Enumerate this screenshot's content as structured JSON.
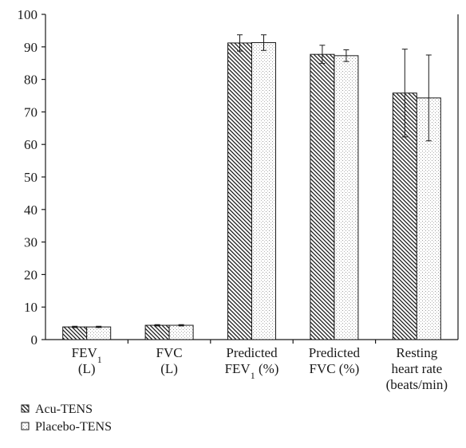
{
  "chart_data": {
    "type": "bar",
    "title": "",
    "xlabel": "",
    "ylabel": "",
    "ylim": [
      0,
      100
    ],
    "yticks": [
      0,
      10,
      20,
      30,
      40,
      50,
      60,
      70,
      80,
      90,
      100
    ],
    "grid": false,
    "legend_placement": "bottom-left",
    "categories": [
      {
        "lines": [
          [
            "FEV",
            "1"
          ],
          [
            "(L)"
          ]
        ]
      },
      {
        "lines": [
          [
            "FVC"
          ],
          [
            "(L)"
          ]
        ]
      },
      {
        "lines": [
          [
            "Predicted"
          ],
          [
            "FEV",
            "1",
            " (%)"
          ]
        ]
      },
      {
        "lines": [
          [
            "Predicted"
          ],
          [
            "FVC (%)"
          ]
        ]
      },
      {
        "lines": [
          [
            "Resting"
          ],
          [
            "heart rate"
          ],
          [
            "(beats/min)"
          ]
        ]
      }
    ],
    "series": [
      {
        "name": "Acu-TENS",
        "pattern": "diagonal-hatch",
        "values": [
          3.9,
          4.4,
          91.2,
          87.7,
          75.8
        ],
        "errors": [
          0.2,
          0.2,
          2.5,
          2.8,
          13.5
        ]
      },
      {
        "name": "Placebo-TENS",
        "pattern": "fine-dots",
        "values": [
          3.9,
          4.4,
          91.3,
          87.3,
          74.3
        ],
        "errors": [
          0.2,
          0.2,
          2.4,
          1.8,
          13.2
        ]
      }
    ],
    "colors": {
      "axis": "#1a1a1a",
      "bar_fill": "#ffffff",
      "bar_stroke": "#1a1a1a"
    }
  }
}
